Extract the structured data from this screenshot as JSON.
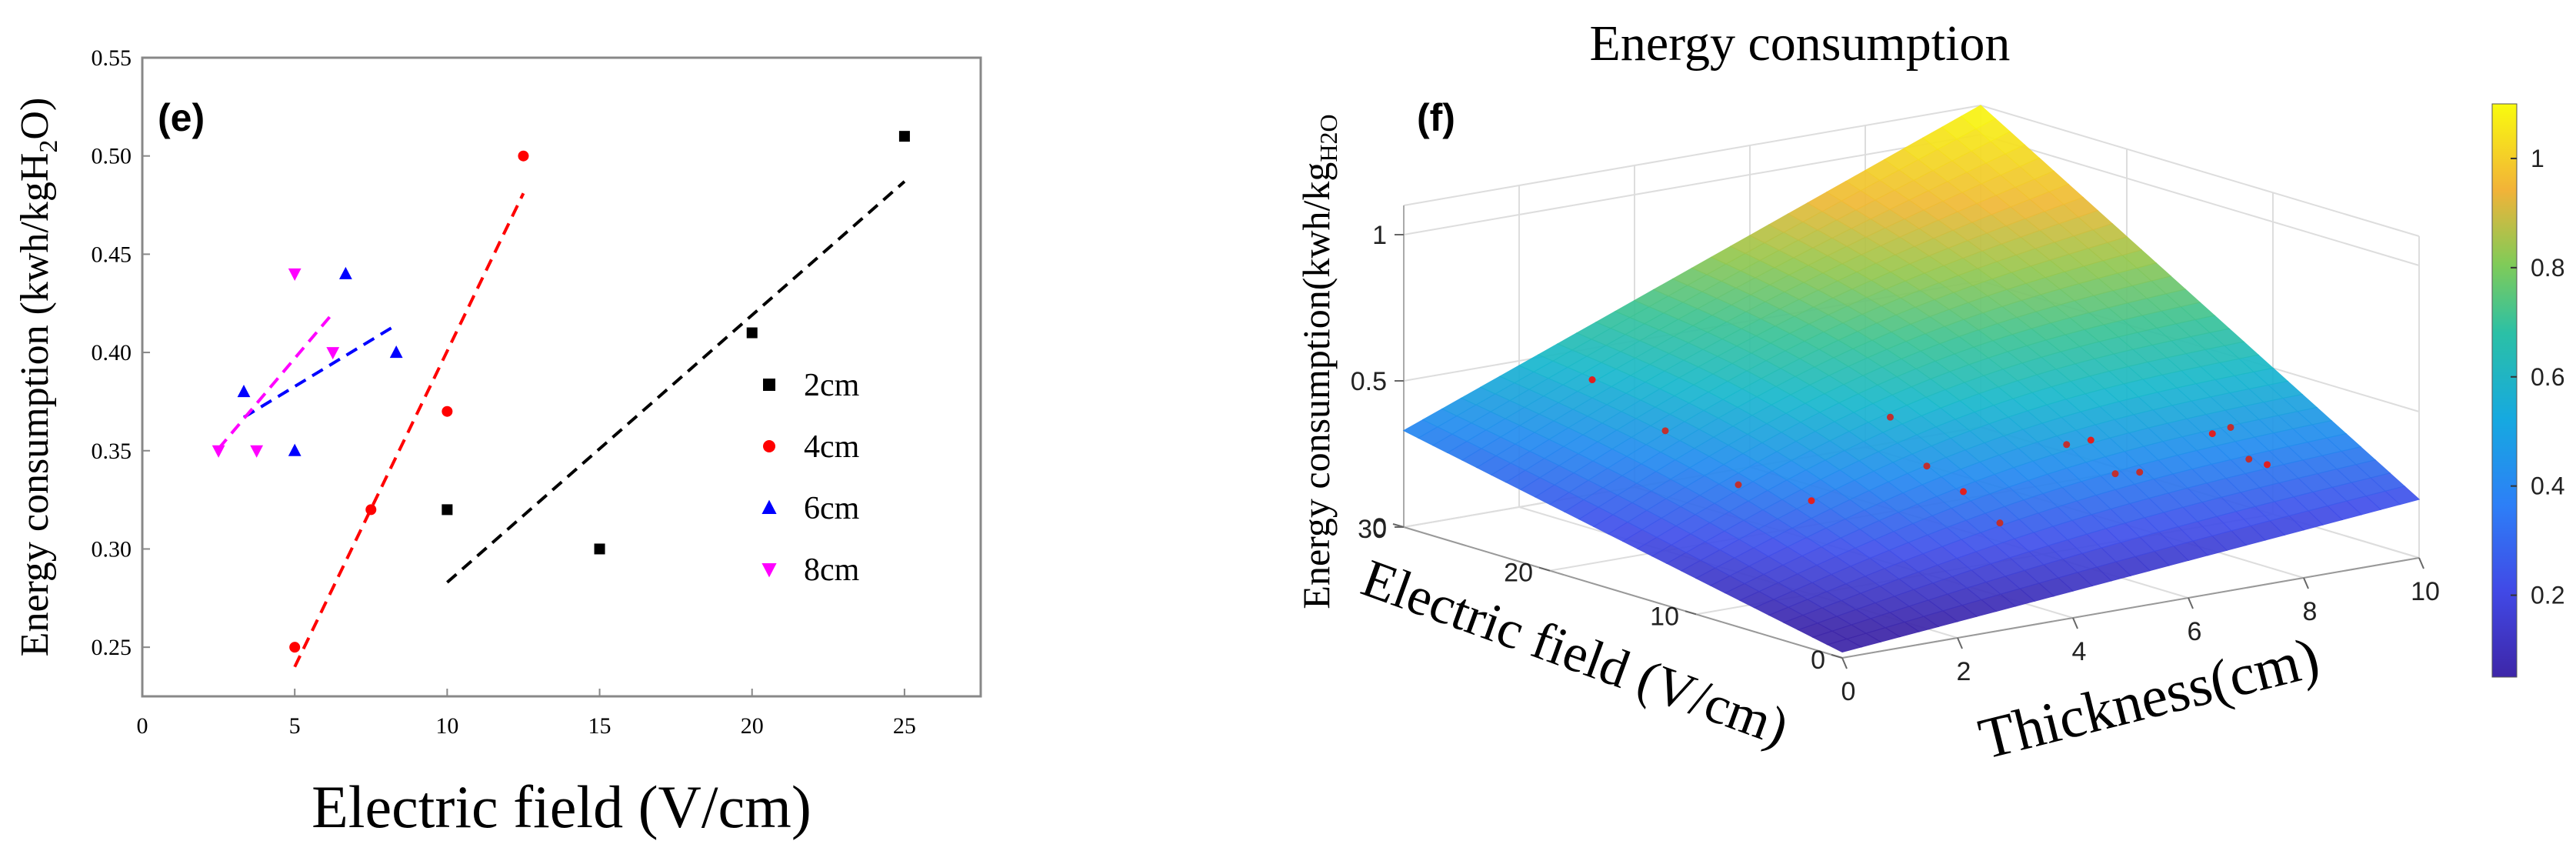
{
  "chart_data": [
    {
      "type": "scatter",
      "panel_label": "(e)",
      "title": "",
      "xlabel": "Electric field (V/cm)",
      "ylabel": "Energy consumption (kwh/kgH",
      "ylabel_sub": "2",
      "ylabel_tail": "O)",
      "xlim": [
        0,
        27.5
      ],
      "ylim": [
        0.225,
        0.55
      ],
      "xticks": [
        0,
        5,
        10,
        15,
        20,
        25
      ],
      "xtick_labels": [
        "0",
        "5",
        "10",
        "15",
        "20",
        "25"
      ],
      "yticks": [
        0.25,
        0.3,
        0.35,
        0.4,
        0.45,
        0.5,
        0.55
      ],
      "ytick_labels": [
        "0.25",
        "0.30",
        "0.35",
        "0.40",
        "0.45",
        "0.50",
        "0.55"
      ],
      "legend_position": "right",
      "series": [
        {
          "name": "2cm",
          "color": "#000000",
          "marker": "square",
          "x": [
            10,
            15,
            20,
            25
          ],
          "y": [
            0.32,
            0.3,
            0.41,
            0.51
          ],
          "fit": {
            "x": [
              10,
              25
            ],
            "y": [
              0.283,
              0.487
            ]
          }
        },
        {
          "name": "4cm",
          "color": "#ff0000",
          "marker": "circle",
          "x": [
            5,
            7.5,
            10,
            12.5
          ],
          "y": [
            0.25,
            0.32,
            0.37,
            0.5
          ],
          "fit": {
            "x": [
              5,
              12.5
            ],
            "y": [
              0.24,
              0.481
            ]
          }
        },
        {
          "name": "6cm",
          "color": "#0000ff",
          "marker": "triangle-up",
          "x": [
            3.33,
            5,
            6.67,
            8.33
          ],
          "y": [
            0.38,
            0.35,
            0.44,
            0.4
          ],
          "fit": {
            "x": [
              3.33,
              8.33
            ],
            "y": [
              0.367,
              0.414
            ]
          }
        },
        {
          "name": "8cm",
          "color": "#ff00ff",
          "marker": "triangle-down",
          "x": [
            2.5,
            3.75,
            5,
            6.25
          ],
          "y": [
            0.35,
            0.35,
            0.44,
            0.4
          ],
          "fit": {
            "x": [
              2.5,
              6.25
            ],
            "y": [
              0.351,
              0.42
            ]
          }
        }
      ]
    },
    {
      "type": "surface",
      "panel_label": "(f)",
      "title": "Energy consumption",
      "xlabel": "Thickness(cm)",
      "ylabel": "Electric field (V/cm)",
      "zlabel": "Energy consumption(kwh/kg",
      "zlabel_sub": "H2O",
      "xlim": [
        0,
        10
      ],
      "ylim": [
        0,
        30
      ],
      "zlim": [
        0,
        1.1
      ],
      "x_ticks": [
        "0",
        "2",
        "4",
        "6",
        "8",
        "10"
      ],
      "y_ticks": [
        "0",
        "10",
        "20",
        "30"
      ],
      "z_ticks": [
        "0",
        "0.5",
        "1"
      ],
      "colorbar_ticks": [
        "0.2",
        "0.4",
        "0.6",
        "0.8",
        "1"
      ],
      "colorbar_range": [
        0.05,
        1.1
      ],
      "corner_values": {
        "t0_e0": 0.02,
        "t10_e0": 0.2,
        "t0_e30": 0.33,
        "t10_e30": 1.1
      },
      "points": [
        {
          "thickness": 2,
          "field": 25,
          "energy": 0.51
        },
        {
          "thickness": 2,
          "field": 20,
          "energy": 0.41
        },
        {
          "thickness": 2,
          "field": 15,
          "energy": 0.3
        },
        {
          "thickness": 2,
          "field": 10,
          "energy": 0.32
        },
        {
          "thickness": 4,
          "field": 12.5,
          "energy": 0.5
        },
        {
          "thickness": 4,
          "field": 10,
          "energy": 0.37
        },
        {
          "thickness": 4,
          "field": 7.5,
          "energy": 0.32
        },
        {
          "thickness": 4,
          "field": 5,
          "energy": 0.25
        },
        {
          "thickness": 6,
          "field": 8.33,
          "energy": 0.4
        },
        {
          "thickness": 6,
          "field": 6.67,
          "energy": 0.44
        },
        {
          "thickness": 6,
          "field": 5,
          "energy": 0.35
        },
        {
          "thickness": 6,
          "field": 3.33,
          "energy": 0.38
        },
        {
          "thickness": 8,
          "field": 6.25,
          "energy": 0.4
        },
        {
          "thickness": 8,
          "field": 5,
          "energy": 0.44
        },
        {
          "thickness": 8,
          "field": 3.75,
          "energy": 0.35
        },
        {
          "thickness": 8,
          "field": 2.5,
          "energy": 0.35
        }
      ]
    }
  ],
  "colors": {
    "surface_low": "#3e26a8",
    "surface_mid": "#2bb9b9",
    "surface_high": "#f9fb0e"
  }
}
